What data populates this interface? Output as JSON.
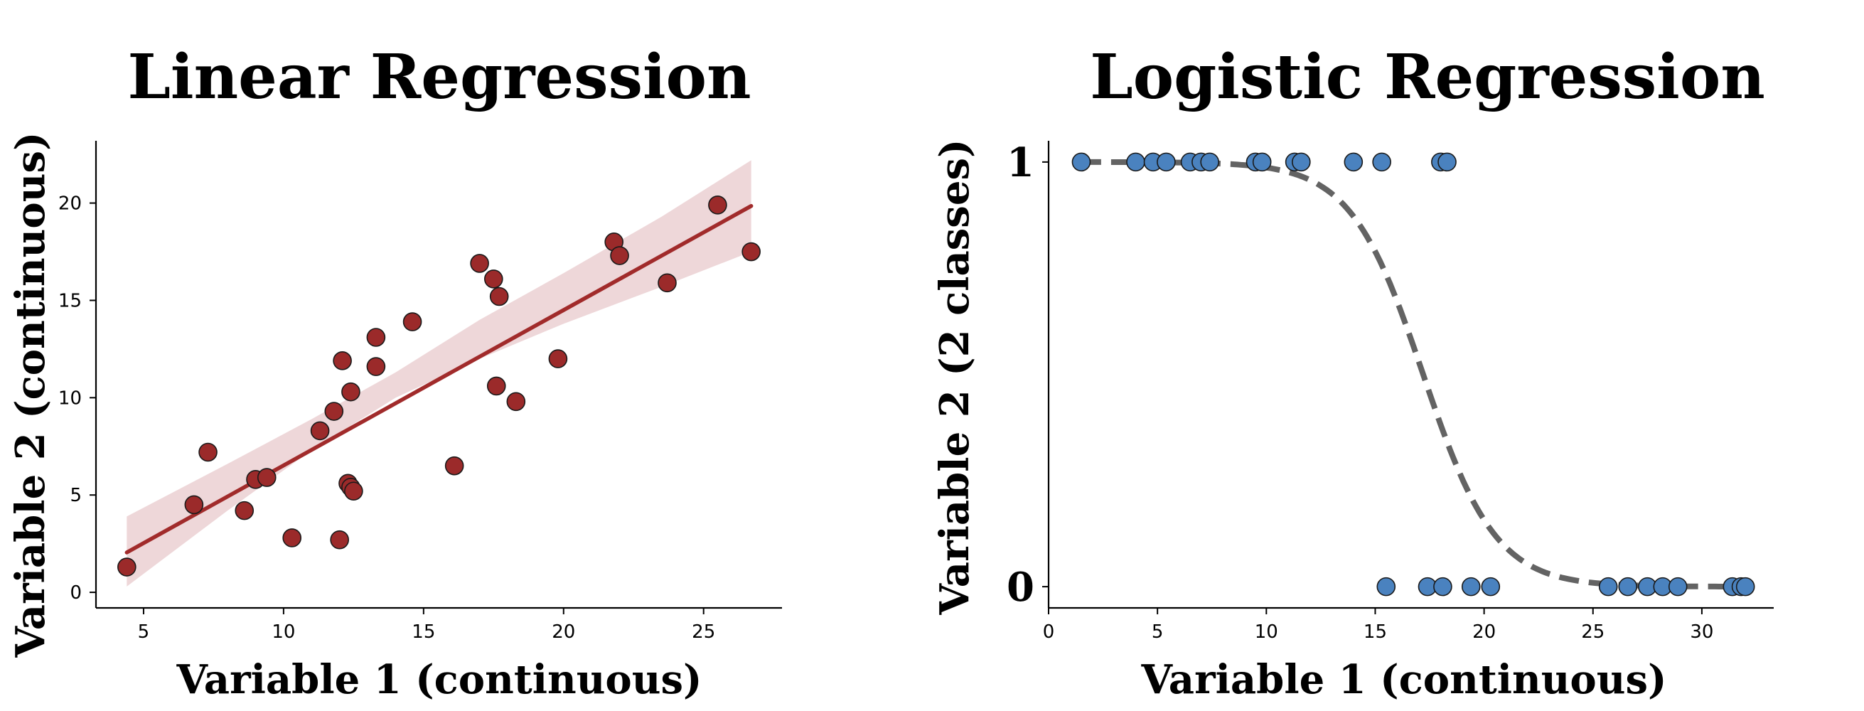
{
  "chart_data": [
    {
      "type": "scatter",
      "title": "Linear Regression",
      "xlabel": "Variable 1 (continuous)",
      "ylabel": "Variable 2 (continuous)",
      "xlim": [
        3.3,
        27.8
      ],
      "ylim": [
        -0.8,
        23.2
      ],
      "xticks": [
        5,
        10,
        15,
        20,
        25
      ],
      "yticks": [
        0,
        5,
        10,
        15,
        20
      ],
      "grid": false,
      "colors": {
        "points": "#9b2a2a",
        "line": "#a12b2b",
        "band": "#e8c9cc",
        "edge": "#1a1a1a"
      },
      "points": [
        [
          4.4,
          1.3
        ],
        [
          6.8,
          4.5
        ],
        [
          7.3,
          7.2
        ],
        [
          8.6,
          4.2
        ],
        [
          9.0,
          5.8
        ],
        [
          9.4,
          5.9
        ],
        [
          10.3,
          2.8
        ],
        [
          11.3,
          8.3
        ],
        [
          11.8,
          9.3
        ],
        [
          12.0,
          2.7
        ],
        [
          12.1,
          11.9
        ],
        [
          12.3,
          5.6
        ],
        [
          12.4,
          10.3
        ],
        [
          12.4,
          5.4
        ],
        [
          12.5,
          5.2
        ],
        [
          13.3,
          13.1
        ],
        [
          13.3,
          11.6
        ],
        [
          14.6,
          13.9
        ],
        [
          16.1,
          6.5
        ],
        [
          17.0,
          16.9
        ],
        [
          17.5,
          16.1
        ],
        [
          17.6,
          10.6
        ],
        [
          17.7,
          15.2
        ],
        [
          18.3,
          9.8
        ],
        [
          19.8,
          12.0
        ],
        [
          21.8,
          18.0
        ],
        [
          22.0,
          17.3
        ],
        [
          23.7,
          15.9
        ],
        [
          25.5,
          19.9
        ],
        [
          26.7,
          17.5
        ]
      ],
      "fit_line": [
        [
          4.4,
          2.05
        ],
        [
          26.7,
          19.85
        ]
      ],
      "ci_band": [
        {
          "x": 4.4,
          "lower": 0.3,
          "upper": 3.9
        },
        {
          "x": 8.0,
          "lower": 4.2,
          "upper": 6.6
        },
        {
          "x": 11.0,
          "lower": 7.3,
          "upper": 8.9
        },
        {
          "x": 14.0,
          "lower": 10.0,
          "upper": 11.3
        },
        {
          "x": 17.0,
          "lower": 12.0,
          "upper": 14.0
        },
        {
          "x": 20.0,
          "lower": 13.8,
          "upper": 16.4
        },
        {
          "x": 23.5,
          "lower": 15.7,
          "upper": 19.3
        },
        {
          "x": 26.7,
          "lower": 17.5,
          "upper": 22.2
        }
      ]
    },
    {
      "type": "scatter",
      "title": "Logistic Regression",
      "xlabel": "Variable 1 (continuous)",
      "ylabel": "Variable 2 (2 classes)",
      "xlim": [
        0,
        33.3
      ],
      "ylim": [
        -0.05,
        1.05
      ],
      "xticks": [
        0,
        5,
        10,
        15,
        20,
        25,
        30
      ],
      "yticks": [
        0,
        1
      ],
      "grid": false,
      "colors": {
        "points": "#4a82bf",
        "curve": "#636363",
        "edge": "#1a1a1a"
      },
      "points": [
        [
          1.5,
          1
        ],
        [
          4.0,
          1
        ],
        [
          4.8,
          1
        ],
        [
          5.4,
          1
        ],
        [
          6.5,
          1
        ],
        [
          7.0,
          1
        ],
        [
          7.4,
          1
        ],
        [
          9.5,
          1
        ],
        [
          9.8,
          1
        ],
        [
          11.3,
          1
        ],
        [
          11.6,
          1
        ],
        [
          14.0,
          1
        ],
        [
          15.3,
          1
        ],
        [
          18.0,
          1
        ],
        [
          18.3,
          1
        ],
        [
          15.5,
          0
        ],
        [
          17.4,
          0
        ],
        [
          18.1,
          0
        ],
        [
          19.4,
          0
        ],
        [
          20.3,
          0
        ],
        [
          25.7,
          0
        ],
        [
          26.6,
          0
        ],
        [
          27.5,
          0
        ],
        [
          28.2,
          0
        ],
        [
          28.9,
          0
        ],
        [
          31.4,
          0
        ],
        [
          31.8,
          0
        ],
        [
          32.0,
          0
        ]
      ],
      "curve": {
        "function": "logistic",
        "midpoint": 17.2,
        "steepness": 0.6,
        "x_range": [
          1.5,
          32.0
        ]
      }
    }
  ]
}
